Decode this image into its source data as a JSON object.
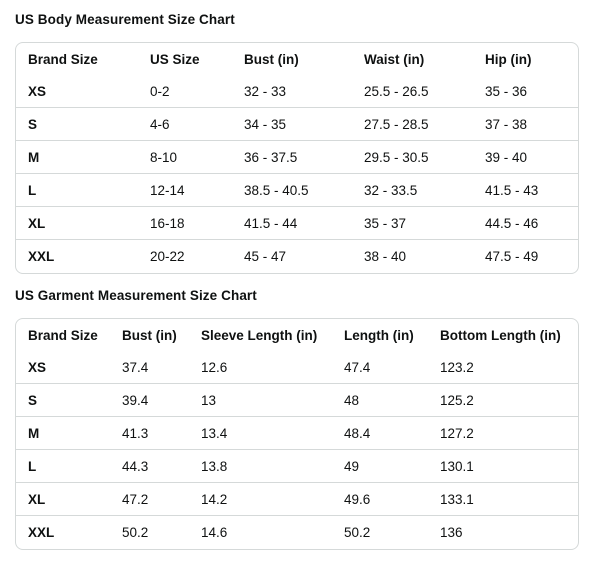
{
  "body_chart": {
    "title": "US Body Measurement Size Chart",
    "headers": [
      "Brand Size",
      "US Size",
      "Bust (in)",
      "Waist (in)",
      "Hip (in)"
    ],
    "rows": [
      [
        "XS",
        "0-2",
        "32 - 33",
        "25.5 - 26.5",
        "35 - 36"
      ],
      [
        "S",
        "4-6",
        "34 - 35",
        "27.5 - 28.5",
        "37 - 38"
      ],
      [
        "M",
        "8-10",
        "36 - 37.5",
        "29.5 - 30.5",
        "39 - 40"
      ],
      [
        "L",
        "12-14",
        "38.5 - 40.5",
        "32 - 33.5",
        "41.5 - 43"
      ],
      [
        "XL",
        "16-18",
        "41.5 - 44",
        "35 - 37",
        "44.5 - 46"
      ],
      [
        "XXL",
        "20-22",
        "45 - 47",
        "38 - 40",
        "47.5 - 49"
      ]
    ]
  },
  "garment_chart": {
    "title": "US Garment Measurement Size Chart",
    "headers": [
      "Brand Size",
      "Bust (in)",
      "Sleeve Length (in)",
      "Length (in)",
      "Bottom Length (in)"
    ],
    "rows": [
      [
        "XS",
        "37.4",
        "12.6",
        "47.4",
        "123.2"
      ],
      [
        "S",
        "39.4",
        "13",
        "48",
        "125.2"
      ],
      [
        "M",
        "41.3",
        "13.4",
        "48.4",
        "127.2"
      ],
      [
        "L",
        "44.3",
        "13.8",
        "49",
        "130.1"
      ],
      [
        "XL",
        "47.2",
        "14.2",
        "49.6",
        "133.1"
      ],
      [
        "XXL",
        "50.2",
        "14.6",
        "50.2",
        "136"
      ]
    ]
  }
}
